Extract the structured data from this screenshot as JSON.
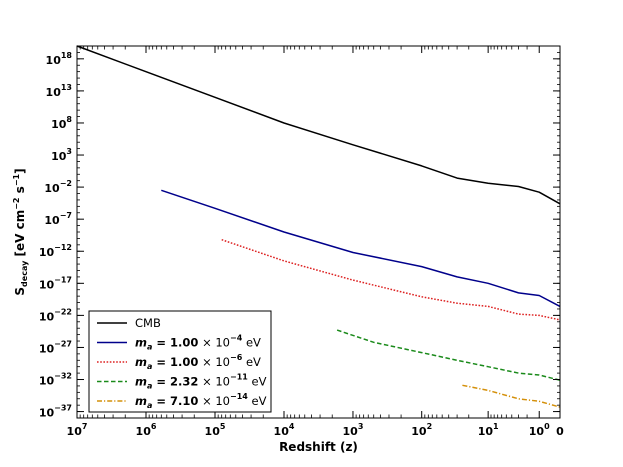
{
  "chart_data": {
    "type": "line",
    "title": "",
    "xlabel": "Redshift (z)",
    "ylabel": "S_decay [eV cm^-2 s^-1]",
    "x_scale": "log(1+z), reversed",
    "y_scale": "log",
    "xlim": [
      10000000,
      0
    ],
    "ylim_exponent": [
      -38,
      20
    ],
    "x_ticks": [
      {
        "base": "10",
        "exp": "7",
        "z": 10000000
      },
      {
        "base": "10",
        "exp": "6",
        "z": 1000000
      },
      {
        "base": "10",
        "exp": "5",
        "z": 100000
      },
      {
        "base": "10",
        "exp": "4",
        "z": 10000
      },
      {
        "base": "10",
        "exp": "3",
        "z": 1000
      },
      {
        "base": "10",
        "exp": "2",
        "z": 100
      },
      {
        "base": "10",
        "exp": "1",
        "z": 10
      },
      {
        "base": "10",
        "exp": "0",
        "z": 1
      },
      {
        "base": "0",
        "exp": "",
        "z": 0
      }
    ],
    "y_ticks": [
      {
        "base": "10",
        "exp": "18",
        "e": 18
      },
      {
        "base": "10",
        "exp": "13",
        "e": 13
      },
      {
        "base": "10",
        "exp": "8",
        "e": 8
      },
      {
        "base": "10",
        "exp": "3",
        "e": 3
      },
      {
        "base": "10",
        "exp": "−2",
        "e": -2
      },
      {
        "base": "10",
        "exp": "−7",
        "e": -7
      },
      {
        "base": "10",
        "exp": "−12",
        "e": -12
      },
      {
        "base": "10",
        "exp": "−17",
        "e": -17
      },
      {
        "base": "10",
        "exp": "−22",
        "e": -22
      },
      {
        "base": "10",
        "exp": "−27",
        "e": -27
      },
      {
        "base": "10",
        "exp": "−32",
        "e": -32
      },
      {
        "base": "10",
        "exp": "−37",
        "e": -37
      }
    ],
    "legend": {
      "position": "lower-left"
    },
    "series": [
      {
        "name": "CMB",
        "legend_text": "CMB",
        "color": "#000000",
        "dash": "solid",
        "points": [
          [
            10000000,
            20.0
          ],
          [
            1000000,
            16.0
          ],
          [
            100000,
            12.0
          ],
          [
            10000,
            8.0
          ],
          [
            1000,
            4.6
          ],
          [
            100,
            1.3
          ],
          [
            30,
            -0.6
          ],
          [
            10,
            -1.4
          ],
          [
            3,
            -1.9
          ],
          [
            1,
            -2.8
          ],
          [
            0,
            -4.6
          ]
        ]
      },
      {
        "name": "m_a = 1.00e-4 eV",
        "mass_value": "1.00",
        "mass_exp": "−4",
        "legend_unit": "eV",
        "color": "#00008b",
        "dash": "solid",
        "points": [
          [
            600000,
            -2.5
          ],
          [
            100000,
            -5.3
          ],
          [
            10000,
            -9.0
          ],
          [
            1000,
            -12.2
          ],
          [
            100,
            -14.4
          ],
          [
            30,
            -16.0
          ],
          [
            10,
            -17.0
          ],
          [
            3,
            -18.5
          ],
          [
            1,
            -18.9
          ],
          [
            0,
            -20.6
          ]
        ]
      },
      {
        "name": "m_a = 1.00e-6 eV",
        "mass_value": "1.00",
        "mass_exp": "−6",
        "legend_unit": "eV",
        "color": "#dd2222",
        "dash": "dotted",
        "points": [
          [
            80000,
            -10.2
          ],
          [
            10000,
            -13.5
          ],
          [
            1000,
            -16.5
          ],
          [
            100,
            -19.1
          ],
          [
            30,
            -20.1
          ],
          [
            10,
            -20.6
          ],
          [
            3,
            -21.8
          ],
          [
            1,
            -22.0
          ],
          [
            0,
            -22.7
          ]
        ]
      },
      {
        "name": "m_a = 2.32e-11 eV",
        "mass_value": "2.32",
        "mass_exp": "−11",
        "legend_unit": "eV",
        "color": "#1a8a1a",
        "dash": "dashed",
        "points": [
          [
            1700,
            -24.3
          ],
          [
            500,
            -26.2
          ],
          [
            100,
            -27.8
          ],
          [
            30,
            -29.0
          ],
          [
            10,
            -30.0
          ],
          [
            3,
            -31.0
          ],
          [
            1,
            -31.3
          ],
          [
            0,
            -32.1
          ]
        ]
      },
      {
        "name": "m_a = 7.10e-14 eV",
        "mass_value": "7.10",
        "mass_exp": "−14",
        "legend_unit": "eV",
        "color": "#d4900a",
        "dash": "dashdot",
        "points": [
          [
            25,
            -32.9
          ],
          [
            10,
            -33.7
          ],
          [
            3,
            -35.0
          ],
          [
            1,
            -35.4
          ],
          [
            0,
            -36.3
          ]
        ]
      }
    ]
  }
}
